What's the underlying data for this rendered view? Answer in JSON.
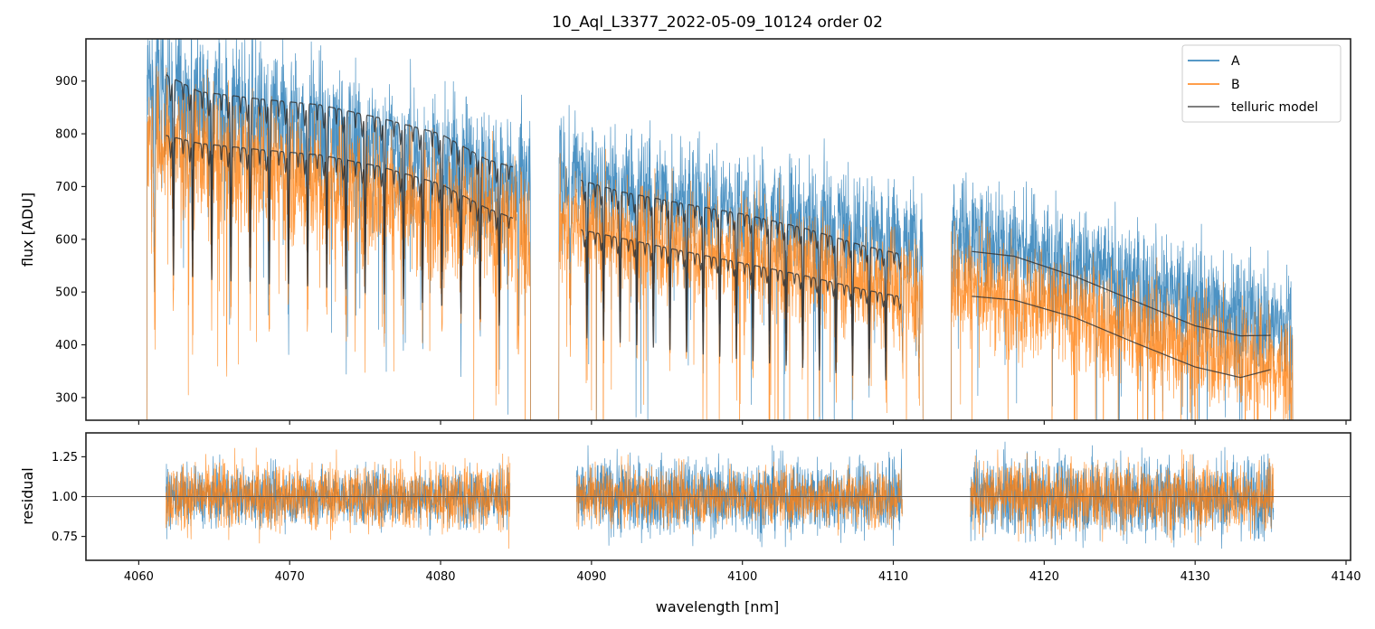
{
  "chart_data": [
    {
      "panel": "flux",
      "type": "line",
      "title": "10_Aql_L3377_2022-05-09_10124  order 02",
      "xlabel": "",
      "ylabel": "flux [ADU]",
      "xlim": [
        4056.5,
        4140.3
      ],
      "ylim": [
        257,
        980
      ],
      "xticks": [
        4060,
        4070,
        4080,
        4090,
        4100,
        4110,
        4120,
        4130,
        4140
      ],
      "xtick_labels_visible": false,
      "yticks": [
        300,
        400,
        500,
        600,
        700,
        800,
        900
      ],
      "ytick_labels": [
        "300",
        "400",
        "500",
        "600",
        "700",
        "800",
        "900"
      ],
      "grid": false,
      "legend": {
        "placement": "top-right",
        "entries": [
          {
            "label": "A",
            "color": "#1f77b4"
          },
          {
            "label": "B",
            "color": "#ff7f0e"
          },
          {
            "label": "telluric model",
            "color": "#555555"
          }
        ]
      },
      "series": [
        {
          "name": "A",
          "color": "#1f77b4",
          "style": "noisy spectrum",
          "segments": [
            {
              "x_range": [
                4060.5,
                4086.0
              ],
              "continuum_start": 900,
              "continuum_end": 700,
              "noise_sd": 70
            },
            {
              "x_range": [
                4087.8,
                4112.0
              ],
              "continuum_start": 730,
              "continuum_end": 600,
              "noise_sd": 55
            },
            {
              "x_range": [
                4113.8,
                4136.5
              ],
              "continuum_start": 620,
              "continuum_end": 430,
              "noise_sd": 55
            }
          ]
        },
        {
          "name": "B",
          "color": "#ff7f0e",
          "style": "noisy spectrum",
          "segments": [
            {
              "x_range": [
                4060.5,
                4086.0
              ],
              "continuum_start": 790,
              "continuum_end": 620,
              "noise_sd": 65
            },
            {
              "x_range": [
                4087.8,
                4112.0
              ],
              "continuum_start": 640,
              "continuum_end": 510,
              "noise_sd": 55
            },
            {
              "x_range": [
                4113.8,
                4136.5
              ],
              "continuum_start": 520,
              "continuum_end": 350,
              "noise_sd": 55
            }
          ]
        },
        {
          "name": "telluric model A",
          "color": "#333333",
          "segments": [
            {
              "x": [
                4061.8,
                4064,
                4068,
                4072,
                4076,
                4080,
                4083,
                4084.8
              ],
              "y": [
                912,
                880,
                866,
                855,
                830,
                800,
                752,
                737
              ]
            },
            {
              "x": [
                4089.3,
                4092,
                4096,
                4100,
                4104,
                4108,
                4110.5
              ],
              "y": [
                712,
                690,
                668,
                648,
                622,
                588,
                572
              ]
            },
            {
              "x": [
                4115.2,
                4118,
                4122,
                4126,
                4130,
                4133,
                4135.0
              ],
              "y": [
                577,
                568,
                530,
                483,
                436,
                417,
                418
              ]
            }
          ],
          "absorption_lines": true
        },
        {
          "name": "telluric model B",
          "color": "#333333",
          "segments": [
            {
              "x": [
                4061.8,
                4064,
                4068,
                4072,
                4076,
                4080,
                4083,
                4084.8
              ],
              "y": [
                797,
                782,
                770,
                760,
                738,
                705,
                660,
                640
              ]
            },
            {
              "x": [
                4089.3,
                4092,
                4096,
                4100,
                4104,
                4108,
                4110.5
              ],
              "y": [
                618,
                602,
                578,
                555,
                532,
                505,
                491
              ]
            },
            {
              "x": [
                4115.2,
                4118,
                4122,
                4126,
                4130,
                4133,
                4135.0
              ],
              "y": [
                492,
                485,
                452,
                404,
                358,
                338,
                353
              ]
            }
          ],
          "absorption_lines": true
        }
      ]
    },
    {
      "panel": "residual",
      "type": "line",
      "title": "",
      "xlabel": "wavelength [nm]",
      "ylabel": "residual",
      "xlim": [
        4056.5,
        4140.3
      ],
      "ylim": [
        0.6,
        1.4
      ],
      "xticks": [
        4060,
        4070,
        4080,
        4090,
        4100,
        4110,
        4120,
        4130,
        4140
      ],
      "xtick_labels": [
        "4060",
        "4070",
        "4080",
        "4090",
        "4100",
        "4110",
        "4120",
        "4130",
        "4140"
      ],
      "yticks": [
        0.75,
        1.0,
        1.25
      ],
      "ytick_labels": [
        "0.75",
        "1.00",
        "1.25"
      ],
      "grid": false,
      "reference_line": {
        "y": 1.0,
        "color": "#555555"
      },
      "series": [
        {
          "name": "A",
          "color": "#1f77b4",
          "segments": [
            {
              "x_range": [
                4061.8,
                4084.6
              ],
              "center": 1.0,
              "noise_sd": 0.09
            },
            {
              "x_range": [
                4089.0,
                4110.6
              ],
              "center": 1.0,
              "noise_sd": 0.12
            },
            {
              "x_range": [
                4115.1,
                4135.2
              ],
              "center": 1.0,
              "noise_sd": 0.13
            }
          ]
        },
        {
          "name": "B",
          "color": "#ff7f0e",
          "segments": [
            {
              "x_range": [
                4061.8,
                4084.6
              ],
              "center": 1.0,
              "noise_sd": 0.11
            },
            {
              "x_range": [
                4089.0,
                4110.6
              ],
              "center": 1.0,
              "noise_sd": 0.09
            },
            {
              "x_range": [
                4115.1,
                4135.2
              ],
              "center": 1.0,
              "noise_sd": 0.11
            }
          ]
        }
      ]
    }
  ]
}
